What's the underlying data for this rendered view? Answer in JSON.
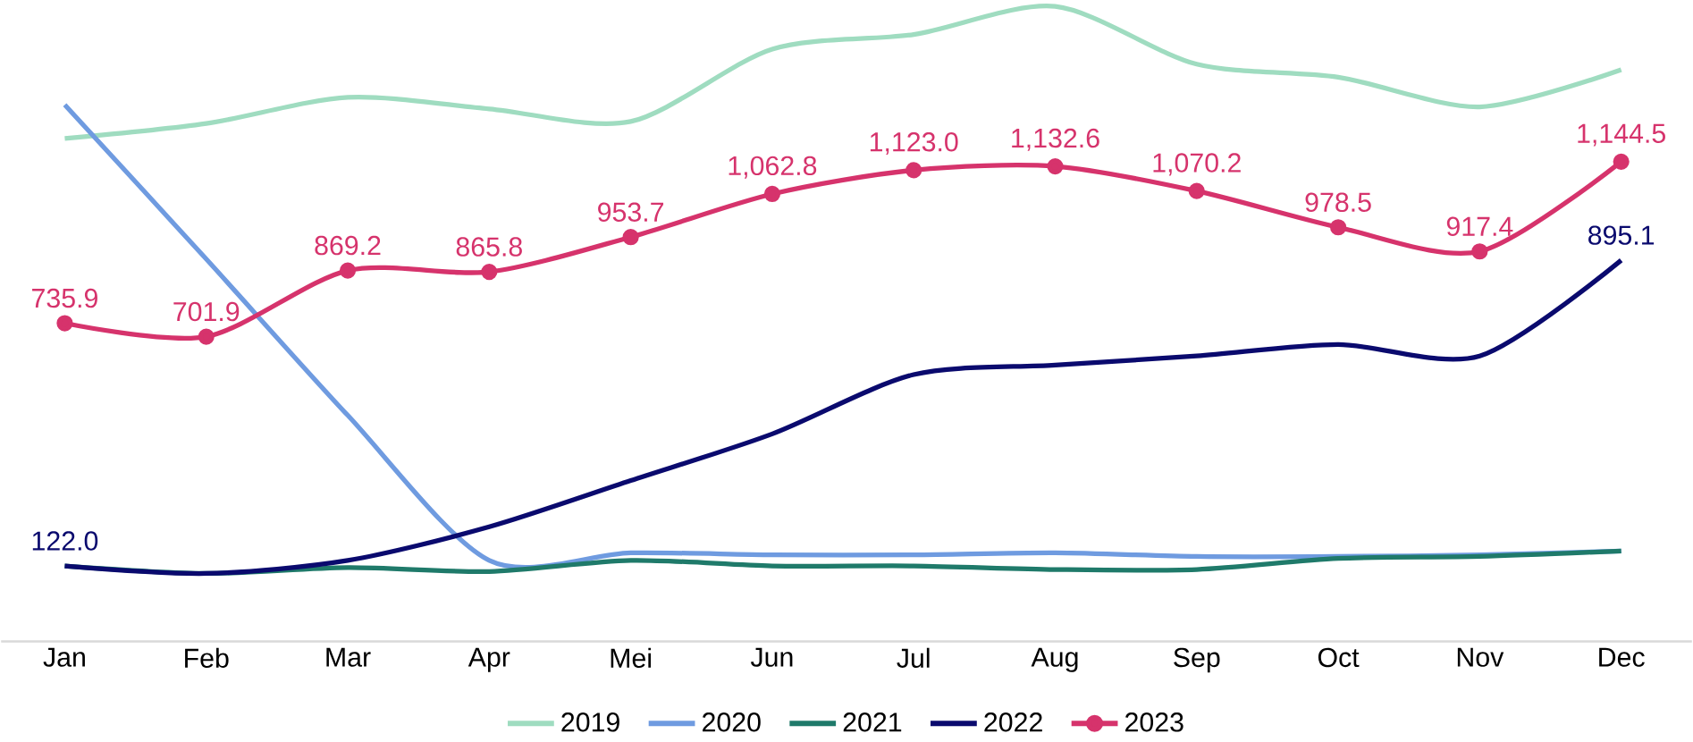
{
  "chart_data": {
    "type": "line",
    "categories": [
      "Jan",
      "Feb",
      "Mar",
      "Apr",
      "Mei",
      "Jun",
      "Jul",
      "Aug",
      "Sep",
      "Oct",
      "Nov",
      "Dec"
    ],
    "tick_labels": "x",
    "grid": false,
    "legend": "bottom",
    "line_style": "solid",
    "series": [
      {
        "name": "2019",
        "color": "#9fdcc0",
        "marker": "none",
        "values": [
          1203,
          1241,
          1307,
          1278,
          1246,
          1429,
          1466,
          1537,
          1391,
          1358,
          1283,
          1377
        ]
      },
      {
        "name": "2020",
        "color": "#6f9be0",
        "marker": "none",
        "values": [
          1288,
          898,
          503,
          136,
          155,
          150,
          150,
          155,
          146,
          146,
          150,
          160
        ]
      },
      {
        "name": "2021",
        "color": "#1f7a6a",
        "marker": "none",
        "values": [
          122,
          103,
          118,
          108,
          136,
          122,
          122,
          113,
          113,
          141,
          146,
          160
        ]
      },
      {
        "name": "2022",
        "color": "#0a0a6e",
        "marker": "none",
        "values": [
          122.0,
          103,
          136,
          221,
          338,
          456,
          606,
          630,
          653,
          682,
          653,
          895.1
        ],
        "value_labels": [
          "122.0",
          null,
          null,
          null,
          null,
          null,
          null,
          null,
          null,
          null,
          null,
          "895.1"
        ]
      },
      {
        "name": "2023",
        "color": "#d6336c",
        "marker": "circle",
        "values": [
          735.9,
          701.9,
          869.2,
          865.8,
          953.7,
          1062.8,
          1123.0,
          1132.6,
          1070.2,
          978.5,
          917.4,
          1144.5
        ],
        "value_labels": [
          "735.9",
          "701.9",
          "869.2",
          "865.8",
          "953.7",
          "1,062.8",
          "1,123.0",
          "1,132.6",
          "1,070.2",
          "978.5",
          "917.4",
          "1,144.5"
        ]
      }
    ]
  }
}
